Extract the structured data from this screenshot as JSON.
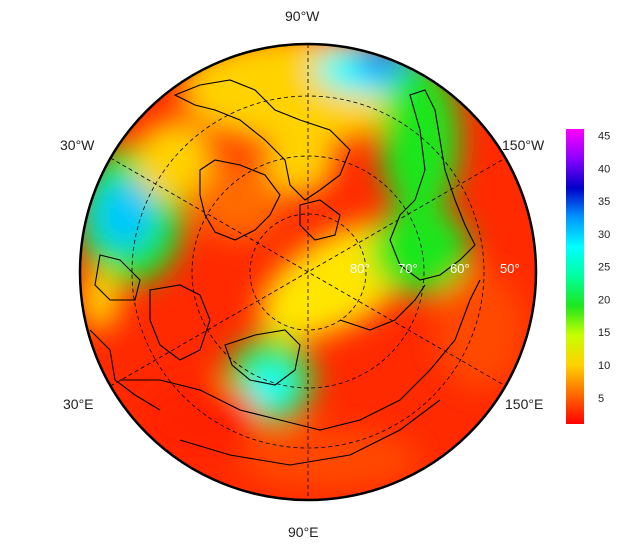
{
  "map": {
    "longitude_labels": [
      "90°W",
      "30°W",
      "150°W",
      "30°E",
      "150°E",
      "90°E"
    ],
    "latitude_labels": [
      "80°",
      "70°",
      "60°",
      "50°"
    ],
    "graticule": "dashed",
    "projection": "north-polar stereographic"
  },
  "colorbar": {
    "ticks": [
      "5",
      "10",
      "15",
      "20",
      "25",
      "30",
      "35",
      "40",
      "45"
    ],
    "min": 1,
    "max": 46,
    "colors": [
      "#ff0000",
      "#ff6a00",
      "#ffd200",
      "#c8ff00",
      "#1ee61e",
      "#00ff9c",
      "#00ffff",
      "#0096ff",
      "#0000c8",
      "#8c00ff",
      "#ff00ff"
    ]
  }
}
